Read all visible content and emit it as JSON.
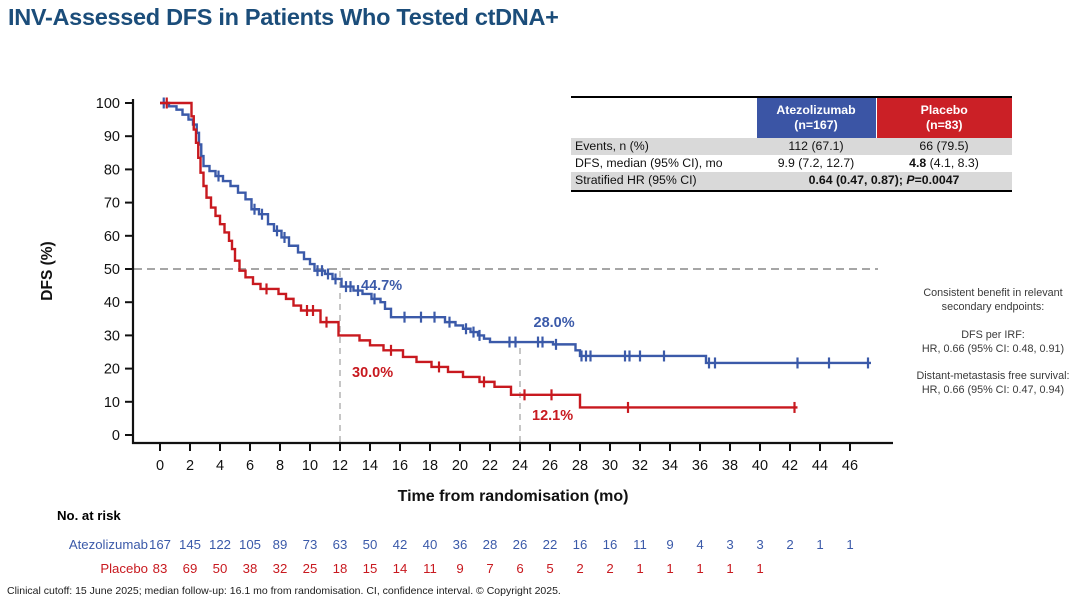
{
  "title": "INV-Assessed DFS in Patients Who Tested ctDNA+",
  "footer": "Clinical cutoff: 15 June 2025; median follow-up: 16.1 mo from randomisation. CI, confidence interval. © Copyright 2025.",
  "colors": {
    "title_navy": "#1b4d7a",
    "atezolizumab_blue": "#3b5aa9",
    "placebo_red": "#c8191f",
    "table_header_blue": "#3b55a5",
    "table_header_red": "#cb2026",
    "row_shade_gray": "#d9d9d9",
    "dash_gray": "#999999"
  },
  "stats_table": {
    "col_headers": [
      {
        "line1": "Atezolizumab",
        "line2": "(n=167)"
      },
      {
        "line1": "Placebo",
        "line2": "(n=83)"
      }
    ],
    "rows": [
      {
        "label": "Events, n (%)",
        "atezolizumab": "112 (67.1)",
        "placebo": "66 (79.5)"
      },
      {
        "label": "DFS, median (95% CI), mo",
        "atezolizumab": "9.9 (7.2, 12.7)",
        "placebo_lead": "4.8",
        "placebo_rest": " (4.1, 8.3)"
      },
      {
        "label": "Stratified HR (95% CI)",
        "value_pre": "0.64 (0.47, 0.87); ",
        "p_label": "P",
        "p_value": "=0.0047"
      }
    ]
  },
  "side_note": {
    "intro": "Consistent benefit in relevant secondary endpoints:",
    "items": [
      {
        "title": "DFS per IRF:",
        "value": "HR, 0.66 (95% CI: 0.48, 0.91)"
      },
      {
        "title": "Distant-metastasis free survival:",
        "value": "HR, 0.66 (95% CI: 0.47, 0.94)"
      }
    ]
  },
  "risk_table": {
    "heading": "No. at risk",
    "rows": [
      {
        "label": "Atezolizumab",
        "color": "#3b5aa9",
        "values": [
          167,
          145,
          122,
          105,
          89,
          73,
          63,
          50,
          42,
          40,
          36,
          28,
          26,
          22,
          16,
          16,
          11,
          9,
          4,
          3,
          3,
          2,
          1,
          1
        ]
      },
      {
        "label": "Placebo",
        "color": "#c8191f",
        "values": [
          83,
          69,
          50,
          38,
          32,
          25,
          18,
          15,
          14,
          11,
          9,
          7,
          6,
          5,
          2,
          2,
          1,
          1,
          1,
          1,
          1
        ]
      }
    ]
  },
  "chart_data": {
    "type": "line",
    "subtype": "kaplan-meier-step",
    "title": "INV-Assessed DFS in Patients Who Tested ctDNA+",
    "xlabel": "Time from randomisation (mo)",
    "ylabel": "DFS (%)",
    "xlim": [
      0,
      47.5
    ],
    "ylim": [
      0,
      100
    ],
    "grid": false,
    "x_ticks": [
      0,
      2,
      4,
      6,
      8,
      10,
      12,
      14,
      16,
      18,
      20,
      22,
      24,
      26,
      28,
      30,
      32,
      34,
      36,
      38,
      40,
      42,
      44,
      46
    ],
    "y_ticks": [
      0,
      10,
      20,
      30,
      40,
      50,
      60,
      70,
      80,
      90,
      100
    ],
    "dash_color": "#999999",
    "reference_lines": {
      "horizontal": [
        {
          "y": 50
        }
      ],
      "vertical": [
        {
          "x": 12,
          "y_top": 50
        },
        {
          "x": 24,
          "y_top": 28
        }
      ]
    },
    "series": [
      {
        "name": "Atezolizumab",
        "color": "#3b5aa9",
        "end_month": 47.4,
        "steps": [
          [
            0,
            100
          ],
          [
            0.6,
            99
          ],
          [
            1.1,
            98
          ],
          [
            1.5,
            96.5
          ],
          [
            1.9,
            95
          ],
          [
            2.2,
            93.5
          ],
          [
            2.45,
            91
          ],
          [
            2.6,
            87.5
          ],
          [
            2.75,
            84
          ],
          [
            2.9,
            81
          ],
          [
            3.3,
            79.5
          ],
          [
            3.7,
            78
          ],
          [
            4.2,
            76.5
          ],
          [
            4.7,
            75
          ],
          [
            5.2,
            73
          ],
          [
            5.7,
            71
          ],
          [
            6.1,
            68
          ],
          [
            6.6,
            66.5
          ],
          [
            7.2,
            63.5
          ],
          [
            7.6,
            61.5
          ],
          [
            8.1,
            59.5
          ],
          [
            8.6,
            57
          ],
          [
            9.2,
            55
          ],
          [
            9.6,
            53
          ],
          [
            10.0,
            51.5
          ],
          [
            10.3,
            49.5
          ],
          [
            11.0,
            48.5
          ],
          [
            11.5,
            47
          ],
          [
            12.1,
            44.7
          ],
          [
            12.9,
            43.5
          ],
          [
            13.5,
            42.5
          ],
          [
            14.1,
            41
          ],
          [
            14.7,
            40
          ],
          [
            15.0,
            38
          ],
          [
            15.4,
            35.5
          ],
          [
            19.0,
            34
          ],
          [
            19.7,
            33
          ],
          [
            20.2,
            32
          ],
          [
            20.7,
            31
          ],
          [
            21.2,
            30
          ],
          [
            21.6,
            29
          ],
          [
            22.0,
            28
          ],
          [
            26.2,
            27.3
          ],
          [
            27.7,
            25.5
          ],
          [
            28.0,
            23.8
          ],
          [
            36.4,
            21.7
          ]
        ],
        "censors": [
          [
            0.25,
            100
          ],
          [
            3.9,
            78
          ],
          [
            6.3,
            68
          ],
          [
            6.8,
            66.5
          ],
          [
            7.8,
            61.5
          ],
          [
            8.3,
            59.5
          ],
          [
            10.5,
            49.5
          ],
          [
            10.8,
            49.5
          ],
          [
            11.2,
            48.5
          ],
          [
            11.7,
            47
          ],
          [
            12.4,
            44.7
          ],
          [
            12.7,
            44.7
          ],
          [
            13.2,
            43.5
          ],
          [
            14.3,
            41
          ],
          [
            16.3,
            35.5
          ],
          [
            17.4,
            35.5
          ],
          [
            18.3,
            35.5
          ],
          [
            19.3,
            34
          ],
          [
            20.4,
            32
          ],
          [
            20.9,
            31
          ],
          [
            21.3,
            30
          ],
          [
            23.3,
            28
          ],
          [
            23.7,
            28
          ],
          [
            25.2,
            28
          ],
          [
            25.5,
            28
          ],
          [
            26.4,
            27.3
          ],
          [
            28.1,
            23.8
          ],
          [
            28.4,
            23.8
          ],
          [
            28.7,
            23.8
          ],
          [
            31.0,
            23.8
          ],
          [
            31.3,
            23.8
          ],
          [
            32.0,
            23.8
          ],
          [
            33.6,
            23.8
          ],
          [
            36.6,
            21.7
          ],
          [
            37.0,
            21.7
          ],
          [
            42.5,
            21.7
          ],
          [
            44.6,
            21.7
          ],
          [
            47.2,
            21.7
          ]
        ],
        "landmark_labels": [
          {
            "label": "44.7%",
            "x": 13.4,
            "y": 43.6
          },
          {
            "label": "28.0%",
            "x": 24.9,
            "y": 32.6
          }
        ]
      },
      {
        "name": "Placebo",
        "color": "#c8191f",
        "end_month": 42.5,
        "steps": [
          [
            0,
            100
          ],
          [
            2.1,
            96
          ],
          [
            2.25,
            92
          ],
          [
            2.4,
            88
          ],
          [
            2.55,
            83.5
          ],
          [
            2.7,
            79
          ],
          [
            2.9,
            75
          ],
          [
            3.1,
            71.5
          ],
          [
            3.4,
            68.5
          ],
          [
            3.7,
            66
          ],
          [
            4.0,
            63.5
          ],
          [
            4.3,
            61
          ],
          [
            4.6,
            58.5
          ],
          [
            4.8,
            56
          ],
          [
            5.0,
            52.5
          ],
          [
            5.3,
            49.5
          ],
          [
            5.7,
            47.5
          ],
          [
            6.2,
            45.5
          ],
          [
            6.7,
            44
          ],
          [
            7.9,
            42.5
          ],
          [
            8.4,
            41
          ],
          [
            8.9,
            39
          ],
          [
            9.4,
            37.5
          ],
          [
            10.7,
            34
          ],
          [
            11.9,
            30
          ],
          [
            13.3,
            28.5
          ],
          [
            14.0,
            27
          ],
          [
            14.9,
            25.5
          ],
          [
            16.2,
            23.5
          ],
          [
            17.1,
            22
          ],
          [
            18.1,
            20.5
          ],
          [
            19.2,
            19
          ],
          [
            20.2,
            17.5
          ],
          [
            21.3,
            16
          ],
          [
            22.3,
            14.5
          ],
          [
            23.4,
            12.1
          ],
          [
            28.0,
            8.3
          ]
        ],
        "censors": [
          [
            0.45,
            100
          ],
          [
            7.1,
            44
          ],
          [
            9.8,
            37.5
          ],
          [
            10.2,
            37.5
          ],
          [
            11.1,
            34
          ],
          [
            15.4,
            25.5
          ],
          [
            18.6,
            20.5
          ],
          [
            21.6,
            16
          ],
          [
            24.3,
            12.1
          ],
          [
            26.1,
            12.1
          ],
          [
            31.2,
            8.3
          ],
          [
            42.3,
            8.3
          ]
        ],
        "landmark_labels": [
          {
            "label": "30.0%",
            "x": 12.8,
            "y": 17.4
          },
          {
            "label": "12.1%",
            "x": 24.8,
            "y": 4.5
          }
        ]
      }
    ],
    "legend_position": "none"
  }
}
